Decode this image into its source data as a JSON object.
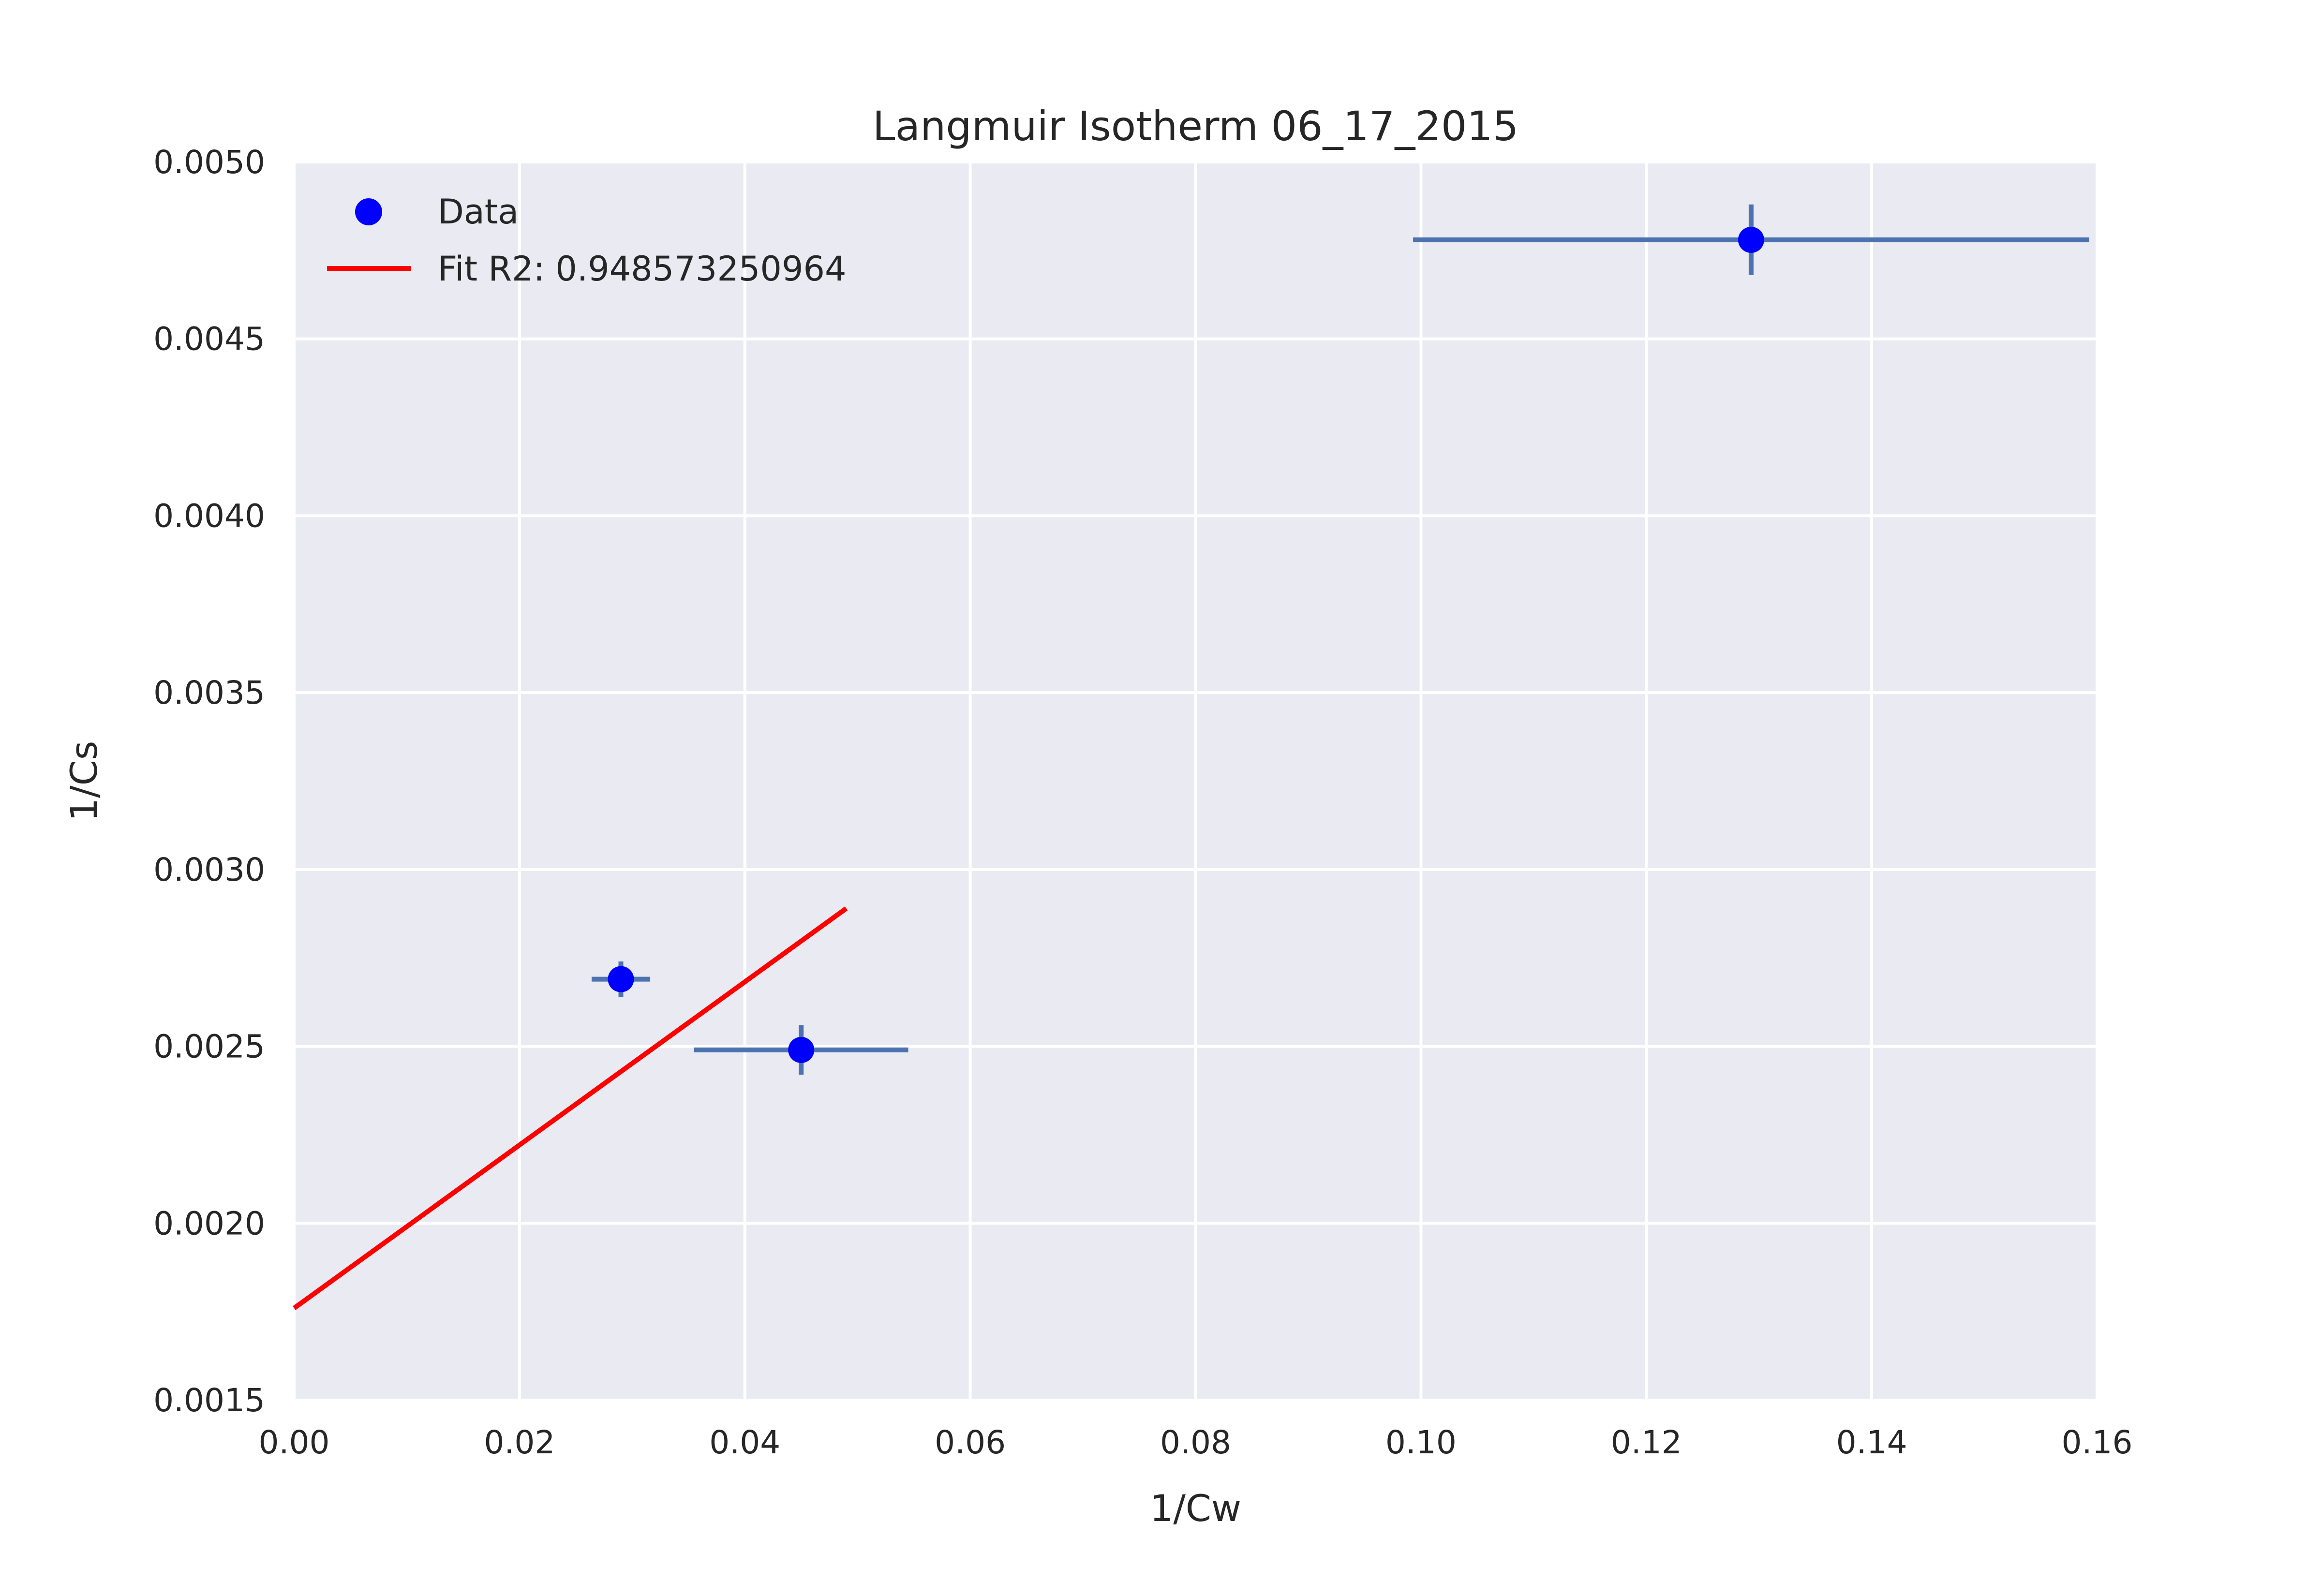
{
  "colors": {
    "plot_background": "#eaeaf2",
    "grid": "#ffffff",
    "data_points": "#0000ff",
    "error_bars": "#4c72b0",
    "fit_line": "#ff0000"
  },
  "chart_data": {
    "type": "scatter",
    "title": "Langmuir Isotherm 06_17_2015",
    "xlabel": "1/Cw",
    "ylabel": "1/Cs",
    "xlim": [
      0.0,
      0.16
    ],
    "ylim": [
      0.0015,
      0.005
    ],
    "x_ticks": [
      0.0,
      0.02,
      0.04,
      0.06,
      0.08,
      0.1,
      0.12,
      0.14,
      0.16
    ],
    "x_tick_labels": [
      "0.00",
      "0.02",
      "0.04",
      "0.06",
      "0.08",
      "0.10",
      "0.12",
      "0.14",
      "0.16"
    ],
    "y_ticks": [
      0.0015,
      0.002,
      0.0025,
      0.003,
      0.0035,
      0.004,
      0.0045,
      0.005
    ],
    "y_tick_labels": [
      "0.0015",
      "0.0020",
      "0.0025",
      "0.0030",
      "0.0035",
      "0.0040",
      "0.0045",
      "0.0050"
    ],
    "grid": true,
    "legend_position": "top-left",
    "series": [
      {
        "name": "Data",
        "kind": "scatter-with-error-bars",
        "points": [
          {
            "x": 0.029,
            "y": 0.00269,
            "xerr": 0.0026,
            "yerr": 5e-05
          },
          {
            "x": 0.045,
            "y": 0.00249,
            "xerr": 0.0095,
            "yerr": 7e-05
          },
          {
            "x": 0.1293,
            "y": 0.00478,
            "xerr": 0.03,
            "yerr": 0.0001
          }
        ]
      },
      {
        "name": "Fit R2: 0.948573250964",
        "kind": "line",
        "x": [
          0.0,
          0.049
        ],
        "y": [
          0.00176,
          0.00289
        ]
      }
    ]
  }
}
